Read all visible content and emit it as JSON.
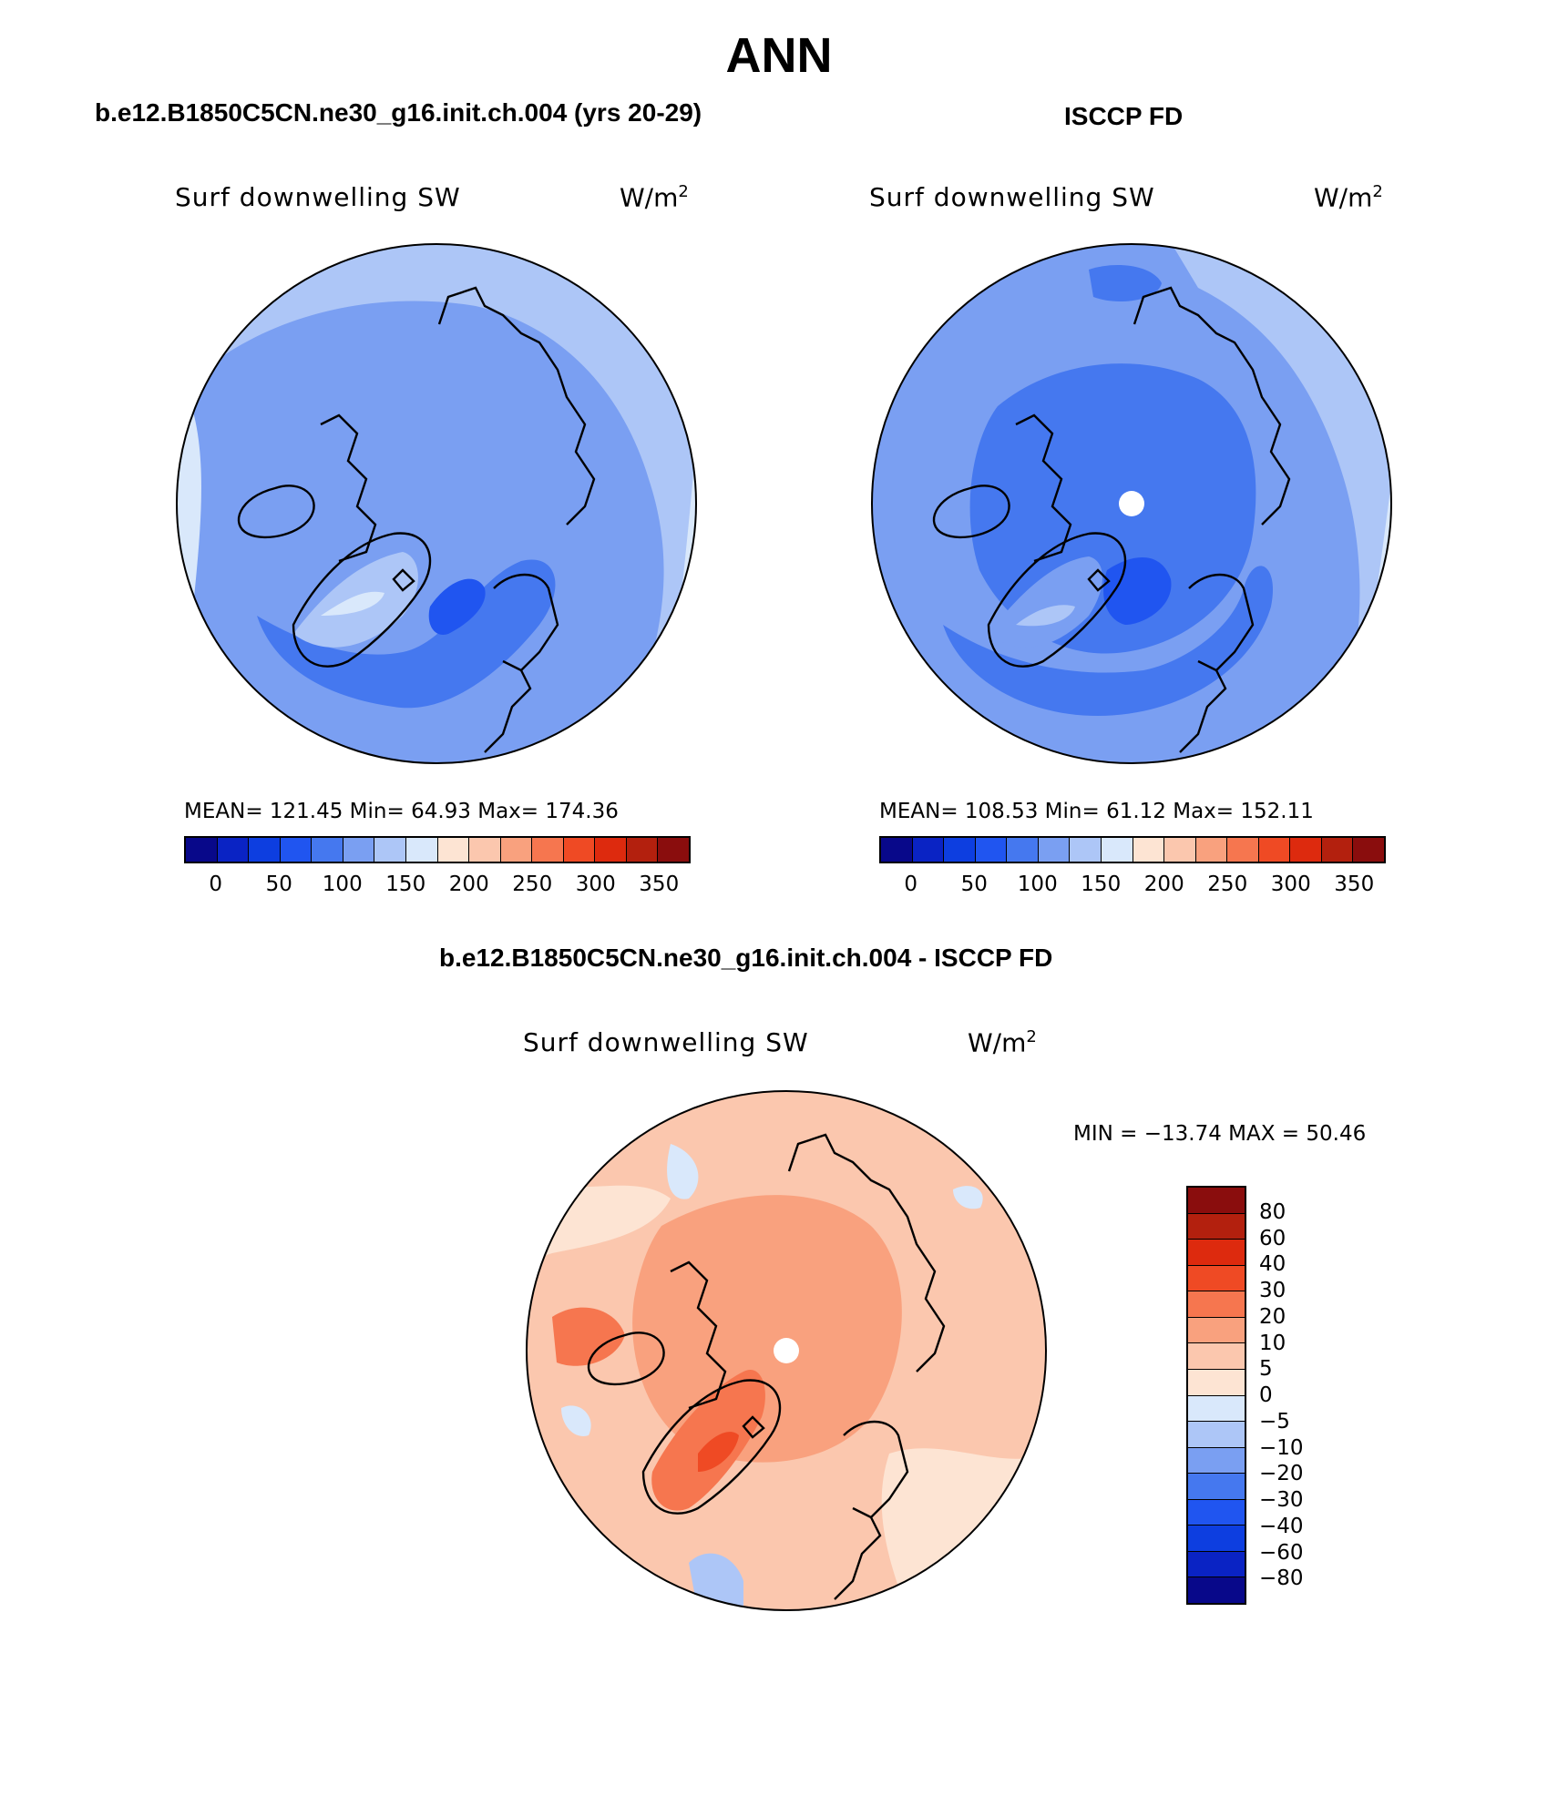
{
  "title": "ANN",
  "panels": [
    {
      "title": "b.e12.B1850C5CN.ne30_g16.init.ch.004 (yrs 20-29)",
      "variable": "Surf downwelling SW",
      "units": "W/m",
      "units_exp": "2",
      "stats": "MEAN= 121.45   Min=   64.93   Max= 174.36",
      "mean": 121.45,
      "min": 64.93,
      "max": 174.36
    },
    {
      "title": "ISCCP FD",
      "variable": "Surf downwelling SW",
      "units": "W/m",
      "units_exp": "2",
      "stats": "MEAN= 108.53   Min=   61.12   Max= 152.11",
      "mean": 108.53,
      "min": 61.12,
      "max": 152.11
    },
    {
      "title": "b.e12.B1850C5CN.ne30_g16.init.ch.004 - ISCCP FD",
      "variable": "Surf downwelling SW",
      "units": "W/m",
      "units_exp": "2",
      "stats": "MIN = −13.74 MAX =   50.46",
      "min": -13.74,
      "max": 50.46
    }
  ],
  "abs_colorbar": {
    "colors": [
      "#08088a",
      "#0a23c4",
      "#0d3ee0",
      "#2055f0",
      "#4578ef",
      "#7a9ff2",
      "#adc6f7",
      "#d9e8fb",
      "#fde4d3",
      "#fbc7ae",
      "#f9a17e",
      "#f6764f",
      "#ef4a24",
      "#dd2a0e",
      "#b3200e",
      "#8a0d0d"
    ],
    "ticks": [
      "0",
      "50",
      "100",
      "150",
      "200",
      "250",
      "300",
      "350"
    ]
  },
  "diff_colorbar": {
    "colors": [
      "#8a0d0d",
      "#b3200e",
      "#dd2a0e",
      "#ef4a24",
      "#f6764f",
      "#f9a17e",
      "#fbc7ae",
      "#fde4d3",
      "#d9e8fb",
      "#adc6f7",
      "#7a9ff2",
      "#4578ef",
      "#2055f0",
      "#0d3ee0",
      "#0a23c4",
      "#08088a"
    ],
    "ticks": [
      "80",
      "60",
      "40",
      "30",
      "20",
      "10",
      "5",
      "0",
      "−5",
      "−10",
      "−20",
      "−30",
      "−40",
      "−60",
      "−80"
    ]
  }
}
